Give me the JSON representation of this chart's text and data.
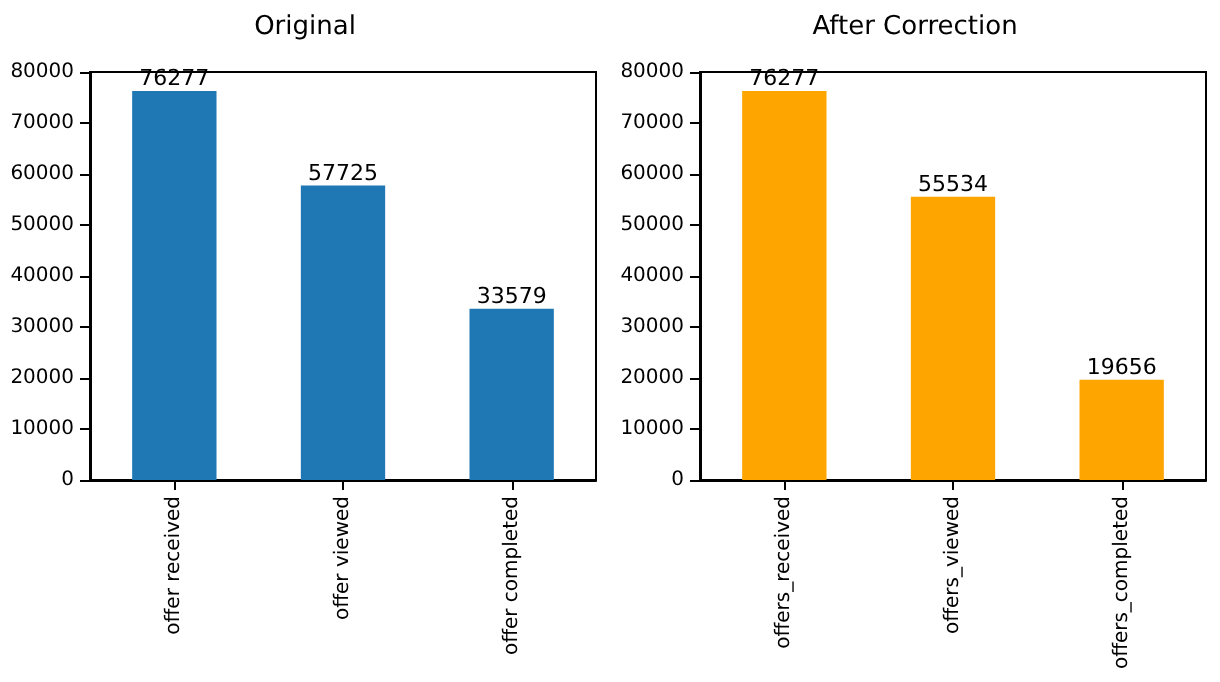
{
  "chart_data": [
    {
      "type": "bar",
      "title": "Original",
      "categories": [
        "offer received",
        "offer viewed",
        "offer completed"
      ],
      "values": [
        76277,
        57725,
        33579
      ],
      "color": "#1f77b4",
      "ylim": [
        0,
        80000
      ],
      "yticks": [
        0,
        10000,
        20000,
        30000,
        40000,
        50000,
        60000,
        70000,
        80000
      ],
      "data_labels": true,
      "grid": false
    },
    {
      "type": "bar",
      "title": "After Correction",
      "categories": [
        "offers_received",
        "offers_viewed",
        "offers_completed"
      ],
      "values": [
        76277,
        55534,
        19656
      ],
      "color": "#ffa500",
      "ylim": [
        0,
        80000
      ],
      "yticks": [
        0,
        10000,
        20000,
        30000,
        40000,
        50000,
        60000,
        70000,
        80000
      ],
      "data_labels": true,
      "grid": false
    }
  ]
}
